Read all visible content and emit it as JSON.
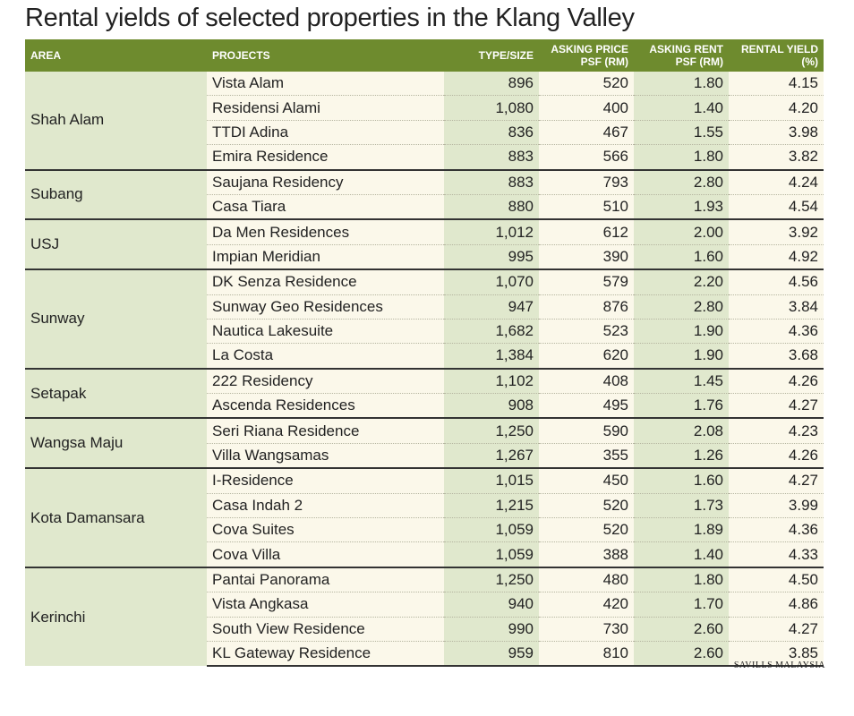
{
  "title": "Rental yields of selected properties in the Klang Valley",
  "headers": {
    "area": "AREA",
    "projects": "PROJECTS",
    "type_size": "TYPE/SIZE",
    "asking_price_1": "ASKING PRICE",
    "asking_price_2": "PSF (RM)",
    "asking_rent_1": "ASKING RENT",
    "asking_rent_2": "PSF (RM)",
    "rental_yield_1": "RENTAL YIELD",
    "rental_yield_2": "(%)"
  },
  "groups": [
    {
      "area": "Shah Alam",
      "rows": [
        {
          "project": "Vista Alam",
          "size": "896",
          "price": "520",
          "rent": "1.80",
          "yield": "4.15"
        },
        {
          "project": "Residensi Alami",
          "size": "1,080",
          "price": "400",
          "rent": "1.40",
          "yield": "4.20"
        },
        {
          "project": "TTDI Adina",
          "size": "836",
          "price": "467",
          "rent": "1.55",
          "yield": "3.98"
        },
        {
          "project": "Emira Residence",
          "size": "883",
          "price": "566",
          "rent": "1.80",
          "yield": "3.82"
        }
      ]
    },
    {
      "area": "Subang",
      "rows": [
        {
          "project": "Saujana Residency",
          "size": "883",
          "price": "793",
          "rent": "2.80",
          "yield": "4.24"
        },
        {
          "project": "Casa Tiara",
          "size": "880",
          "price": "510",
          "rent": "1.93",
          "yield": "4.54"
        }
      ]
    },
    {
      "area": "USJ",
      "rows": [
        {
          "project": "Da Men Residences",
          "size": "1,012",
          "price": "612",
          "rent": "2.00",
          "yield": "3.92"
        },
        {
          "project": "Impian Meridian",
          "size": "995",
          "price": "390",
          "rent": "1.60",
          "yield": "4.92"
        }
      ]
    },
    {
      "area": "Sunway",
      "rows": [
        {
          "project": "DK Senza Residence",
          "size": "1,070",
          "price": "579",
          "rent": "2.20",
          "yield": "4.56"
        },
        {
          "project": "Sunway Geo Residences",
          "size": "947",
          "price": "876",
          "rent": "2.80",
          "yield": "3.84"
        },
        {
          "project": "Nautica Lakesuite",
          "size": "1,682",
          "price": "523",
          "rent": "1.90",
          "yield": "4.36"
        },
        {
          "project": "La Costa",
          "size": "1,384",
          "price": "620",
          "rent": "1.90",
          "yield": "3.68"
        }
      ]
    },
    {
      "area": "Setapak",
      "rows": [
        {
          "project": "222 Residency",
          "size": "1,102",
          "price": "408",
          "rent": "1.45",
          "yield": "4.26"
        },
        {
          "project": "Ascenda Residences",
          "size": "908",
          "price": "495",
          "rent": "1.76",
          "yield": "4.27"
        }
      ]
    },
    {
      "area": "Wangsa Maju",
      "rows": [
        {
          "project": "Seri Riana Residence",
          "size": "1,250",
          "price": "590",
          "rent": "2.08",
          "yield": "4.23"
        },
        {
          "project": "Villa Wangsamas",
          "size": "1,267",
          "price": "355",
          "rent": "1.26",
          "yield": "4.26"
        }
      ]
    },
    {
      "area": "Kota Damansara",
      "rows": [
        {
          "project": "I-Residence",
          "size": "1,015",
          "price": "450",
          "rent": "1.60",
          "yield": "4.27"
        },
        {
          "project": "Casa Indah 2",
          "size": "1,215",
          "price": "520",
          "rent": "1.73",
          "yield": "3.99"
        },
        {
          "project": "Cova Suites",
          "size": "1,059",
          "price": "520",
          "rent": "1.89",
          "yield": "4.36"
        },
        {
          "project": "Cova Villa",
          "size": "1,059",
          "price": "388",
          "rent": "1.40",
          "yield": "4.33"
        }
      ]
    },
    {
      "area": "Kerinchi",
      "rows": [
        {
          "project": "Pantai Panorama",
          "size": "1,250",
          "price": "480",
          "rent": "1.80",
          "yield": "4.50"
        },
        {
          "project": "Vista Angkasa",
          "size": "940",
          "price": "420",
          "rent": "1.70",
          "yield": "4.86"
        },
        {
          "project": "South View Residence",
          "size": "990",
          "price": "730",
          "rent": "2.60",
          "yield": "4.27"
        },
        {
          "project": "KL Gateway Residence",
          "size": "959",
          "price": "810",
          "rent": "2.60",
          "yield": "3.85"
        }
      ]
    }
  ],
  "source": "SAVILLS MALAYSIA"
}
